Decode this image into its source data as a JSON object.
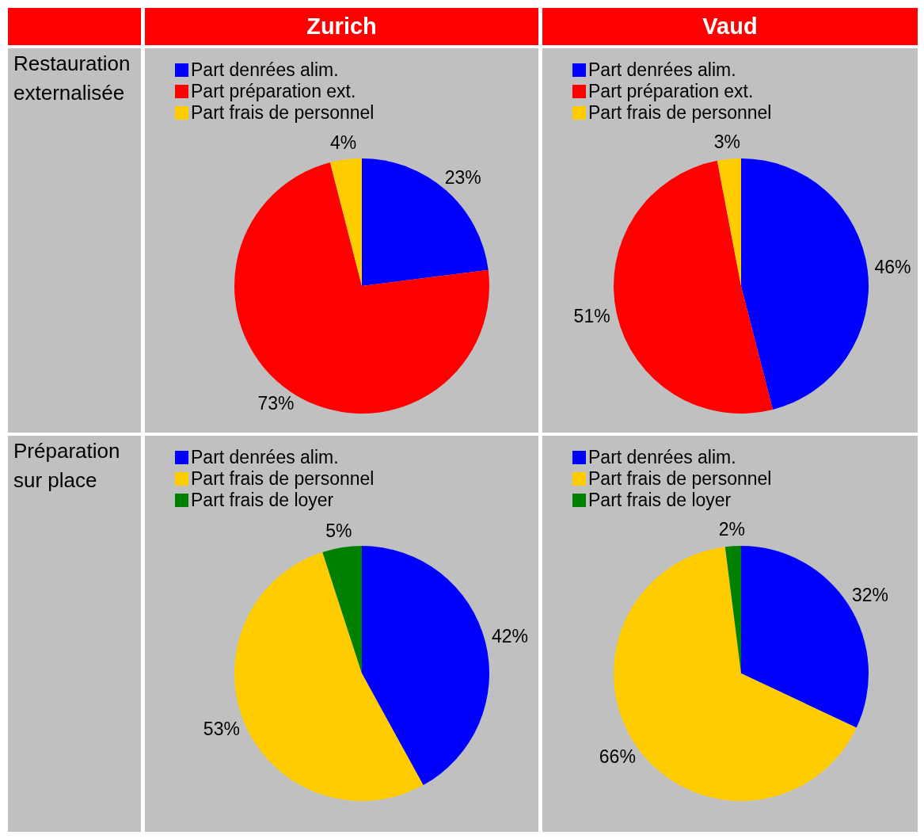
{
  "chart_data": [
    {
      "type": "pie",
      "title": "Zurich",
      "ylabel": "Restauration externalisée",
      "categories": [
        "Part denrées alim.",
        "Part préparation ext.",
        "Part frais de personnel"
      ],
      "values": [
        23,
        73,
        4
      ],
      "colors": [
        "#0000ff",
        "#ff0000",
        "#ffcc00"
      ],
      "value_labels": [
        "23%",
        "73%",
        "4%"
      ],
      "legend": "top left"
    },
    {
      "type": "pie",
      "title": "Vaud",
      "categories": [
        "Part denrées alim.",
        "Part préparation ext.",
        "Part frais de personnel"
      ],
      "values": [
        46,
        51,
        3
      ],
      "colors": [
        "#0000ff",
        "#ff0000",
        "#ffcc00"
      ],
      "value_labels": [
        "46%",
        "51%",
        "3%"
      ],
      "legend": "top left"
    },
    {
      "type": "pie",
      "ylabel": "Préparation sur place",
      "categories": [
        "Part denrées alim.",
        "Part frais de personnel",
        "Part frais de loyer"
      ],
      "values": [
        42,
        53,
        5
      ],
      "colors": [
        "#0000ff",
        "#ffcc00",
        "#008000"
      ],
      "value_labels": [
        "42%",
        "53%",
        "5%"
      ],
      "legend": "top left"
    },
    {
      "type": "pie",
      "categories": [
        "Part denrées alim.",
        "Part frais de personnel",
        "Part frais de loyer"
      ],
      "values": [
        32,
        66,
        2
      ],
      "colors": [
        "#0000ff",
        "#ffcc00",
        "#008000"
      ],
      "value_labels": [
        "32%",
        "66%",
        "2%"
      ],
      "legend": "top left"
    }
  ]
}
